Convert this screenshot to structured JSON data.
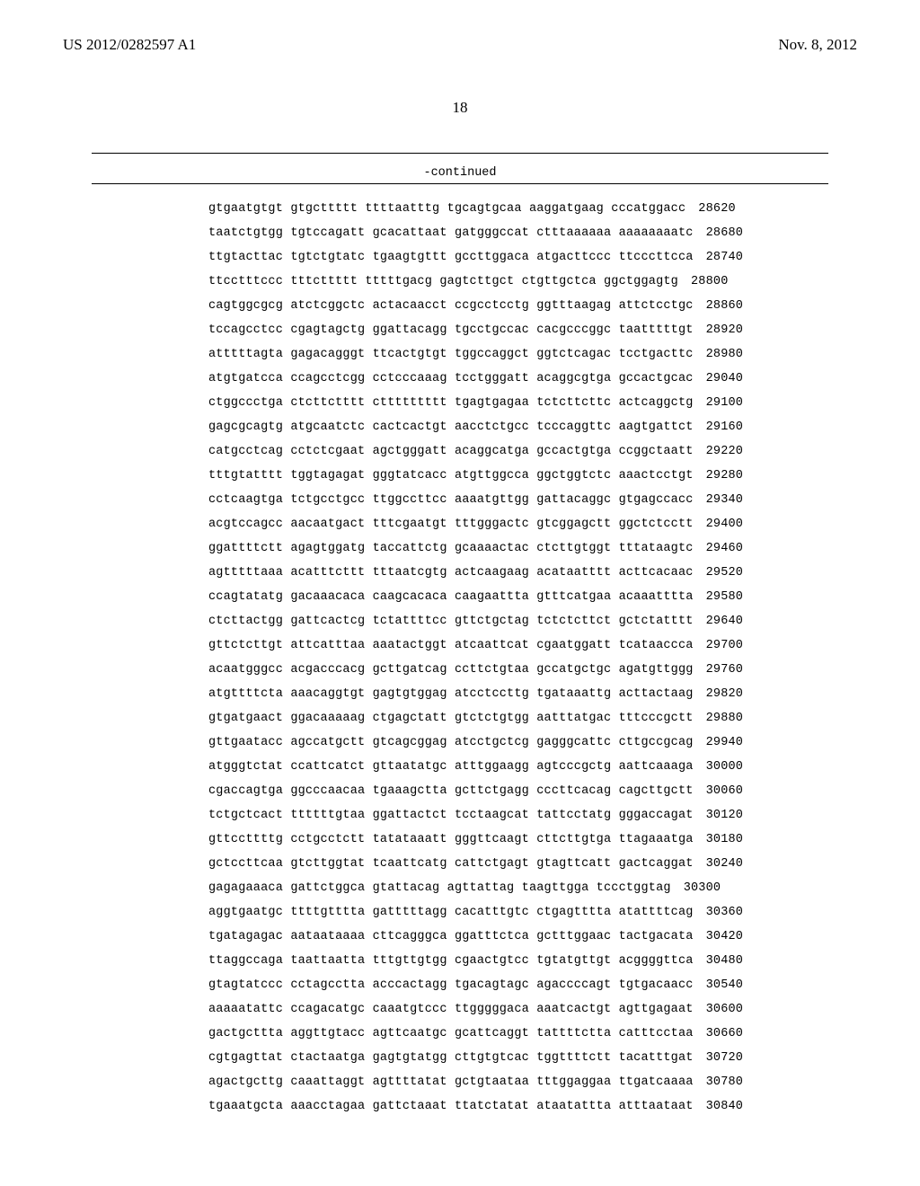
{
  "header": {
    "left": "US 2012/0282597 A1",
    "right": "Nov. 8, 2012"
  },
  "page_number": "18",
  "continued_label": "-continued",
  "sequence": {
    "font_family": "Courier New",
    "font_size_pt": 10,
    "group_len": 10,
    "groups_per_line": 6,
    "rows": [
      {
        "seq": "gtgaatgtgt gtgcttttt ttttaatttg tgcagtgcaa aaggatgaag cccatggacc",
        "pos": "28620"
      },
      {
        "seq": "taatctgtgg tgtccagatt gcacattaat gatgggccat ctttaaaaaa aaaaaaaatc",
        "pos": "28680"
      },
      {
        "seq": "ttgtacttac tgtctgtatc tgaagtgttt gccttggaca atgacttccc ttcccttcca",
        "pos": "28740"
      },
      {
        "seq": "ttcctttccc tttcttttt tttttgacg gagtcttgct ctgttgctca ggctggagtg",
        "pos": "28800"
      },
      {
        "seq": "cagtggcgcg atctcggctc actacaacct ccgcctcctg ggtttaagag attctcctgc",
        "pos": "28860"
      },
      {
        "seq": "tccagcctcc cgagtagctg ggattacagg tgcctgccac cacgcccggc taatttttgt",
        "pos": "28920"
      },
      {
        "seq": "atttttagta gagacagggt ttcactgtgt tggccaggct ggtctcagac tcctgacttc",
        "pos": "28980"
      },
      {
        "seq": "atgtgatcca ccagcctcgg cctcccaaag tcctgggatt acaggcgtga gccactgcac",
        "pos": "29040"
      },
      {
        "seq": "ctggccctga ctcttctttt cttttttttt tgagtgagaa tctcttcttc actcaggctg",
        "pos": "29100"
      },
      {
        "seq": "gagcgcagtg atgcaatctc cactcactgt aacctctgcc tcccaggttc aagtgattct",
        "pos": "29160"
      },
      {
        "seq": "catgcctcag cctctcgaat agctgggatt acaggcatga gccactgtga ccggctaatt",
        "pos": "29220"
      },
      {
        "seq": "tttgtatttt tggtagagat gggtatcacc atgttggcca ggctggtctc aaactcctgt",
        "pos": "29280"
      },
      {
        "seq": "cctcaagtga tctgcctgcc ttggccttcc aaaatgttgg gattacaggc gtgagccacc",
        "pos": "29340"
      },
      {
        "seq": "acgtccagcc aacaatgact tttcgaatgt tttgggactc gtcggagctt ggctctcctt",
        "pos": "29400"
      },
      {
        "seq": "ggattttctt agagtggatg taccattctg gcaaaactac ctcttgtggt tttataagtc",
        "pos": "29460"
      },
      {
        "seq": "agtttttaaa acatttcttt tttaatcgtg actcaagaag acataatttt acttcacaac",
        "pos": "29520"
      },
      {
        "seq": "ccagtatatg gacaaacaca caagcacaca caagaattta gtttcatgaa acaaatttta",
        "pos": "29580"
      },
      {
        "seq": "ctcttactgg gattcactcg tctattttcc gttctgctag tctctcttct gctctatttt",
        "pos": "29640"
      },
      {
        "seq": "gttctcttgt attcatttaa aaatactggt atcaattcat cgaatggatt tcataaccca",
        "pos": "29700"
      },
      {
        "seq": "acaatgggcc acgacccacg gcttgatcag ccttctgtaa gccatgctgc agatgttggg",
        "pos": "29760"
      },
      {
        "seq": "atgttttcta aaacaggtgt gagtgtggag atcctccttg tgataaattg acttactaag",
        "pos": "29820"
      },
      {
        "seq": "gtgatgaact ggacaaaaag ctgagctatt gtctctgtgg aatttatgac tttcccgctt",
        "pos": "29880"
      },
      {
        "seq": "gttgaatacc agccatgctt gtcagcggag atcctgctcg gagggcattc cttgccgcag",
        "pos": "29940"
      },
      {
        "seq": "atgggtctat ccattcatct gttaatatgc atttggaagg agtcccgctg aattcaaaga",
        "pos": "30000"
      },
      {
        "seq": "cgaccagtga ggcccaacaa tgaaagctta gcttctgagg cccttcacag cagcttgctt",
        "pos": "30060"
      },
      {
        "seq": "tctgctcact ttttttgtaa ggattactct tcctaagcat tattcctatg gggaccagat",
        "pos": "30120"
      },
      {
        "seq": "gttccttttg cctgcctctt tatataaatt gggttcaagt cttcttgtga ttagaaatga",
        "pos": "30180"
      },
      {
        "seq": "gctccttcaa gtcttggtat tcaattcatg cattctgagt gtagttcatt gactcaggat",
        "pos": "30240"
      },
      {
        "seq": "gagagaaaca gattctggca gtattacag agttattag taagttgga tccctggtag",
        "pos": "30300"
      },
      {
        "seq": "aggtgaatgc ttttgtttta gatttttagg cacatttgtc ctgagtttta atattttcag",
        "pos": "30360"
      },
      {
        "seq": "tgatagagac aataataaaa cttcagggca ggatttctca gctttggaac tactgacata",
        "pos": "30420"
      },
      {
        "seq": "ttaggccaga taattaatta tttgttgtgg cgaactgtcc tgtatgttgt acggggttca",
        "pos": "30480"
      },
      {
        "seq": "gtagtatccc cctagcctta acccactagg tgacagtagc agaccccagt tgtgacaacc",
        "pos": "30540"
      },
      {
        "seq": "aaaaatattc ccagacatgc caaatgtccc ttgggggaca aaatcactgt agttgagaat",
        "pos": "30600"
      },
      {
        "seq": "gactgcttta aggttgtacc agttcaatgc gcattcaggt tattttctta catttcctaa",
        "pos": "30660"
      },
      {
        "seq": "cgtgagttat ctactaatga gagtgtatgg cttgtgtcac tggttttctt tacatttgat",
        "pos": "30720"
      },
      {
        "seq": "agactgcttg caaattaggt agttttatat gctgtaataa tttggaggaa ttgatcaaaa",
        "pos": "30780"
      },
      {
        "seq": "tgaaatgcta aaacctagaa gattctaaat ttatctatat ataatattta atttaataat",
        "pos": "30840"
      }
    ]
  }
}
